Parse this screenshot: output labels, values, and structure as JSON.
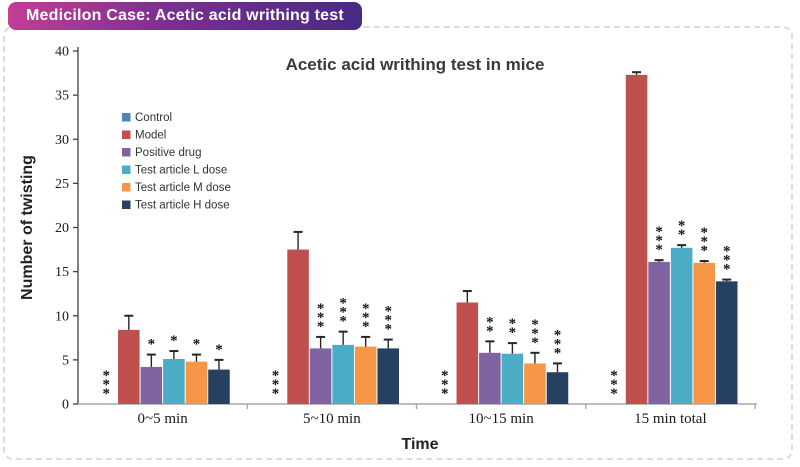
{
  "header": {
    "badge_text": "Medicilon Case: Acetic acid writhing test",
    "badge_gradient": [
      "#C23E95",
      "#482A85"
    ]
  },
  "chart_data": {
    "type": "bar",
    "title": "Acetic acid writhing test in mice",
    "xlabel": "Time",
    "ylabel": "Number of twisting",
    "ylim": [
      0,
      40
    ],
    "ytick_step": 5,
    "grid": false,
    "legend_position": "upper-left-inside",
    "categories": [
      "0~5 min",
      "5~10 min",
      "10~15 min",
      "15 min total"
    ],
    "series": [
      {
        "name": "Control",
        "color": "#4F81BD",
        "values": [
          0,
          0,
          0,
          0
        ],
        "errors": [
          0,
          0,
          0,
          0
        ],
        "sig": [
          "***",
          "***",
          "***",
          "***"
        ]
      },
      {
        "name": "Model",
        "color": "#C0504D",
        "values": [
          8.4,
          17.5,
          11.5,
          37.3
        ],
        "errors": [
          1.6,
          2.0,
          1.3,
          0.3
        ],
        "sig": [
          "",
          "",
          "",
          ""
        ]
      },
      {
        "name": "Positive drug",
        "color": "#8064A2",
        "values": [
          4.2,
          6.3,
          5.8,
          16.1
        ],
        "errors": [
          1.4,
          1.3,
          1.3,
          0.2
        ],
        "sig": [
          "*",
          "***",
          "**",
          "***"
        ]
      },
      {
        "name": "Test article L dose",
        "color": "#4BACC6",
        "values": [
          5.1,
          6.7,
          5.7,
          17.7
        ],
        "errors": [
          0.9,
          1.5,
          1.2,
          0.3
        ],
        "sig": [
          "*",
          "***",
          "**",
          "**"
        ]
      },
      {
        "name": "Test article M dose",
        "color": "#F79646",
        "values": [
          4.8,
          6.5,
          4.6,
          16.0
        ],
        "errors": [
          0.8,
          1.1,
          1.2,
          0.2
        ],
        "sig": [
          "*",
          "***",
          "***",
          "***"
        ]
      },
      {
        "name": "Test article H dose",
        "color": "#254061",
        "values": [
          3.9,
          6.3,
          3.6,
          13.9
        ],
        "errors": [
          1.1,
          1.0,
          1.0,
          0.2
        ],
        "sig": [
          "*",
          "***",
          "***",
          "***"
        ]
      }
    ]
  },
  "colors": {
    "x_axis": "#A6A6A6",
    "y_axis": "#404040",
    "error_bar": "#262626",
    "title_text": "#3A3A3A",
    "tick_text": "#1a1a1a",
    "sig_text": "#111111"
  }
}
